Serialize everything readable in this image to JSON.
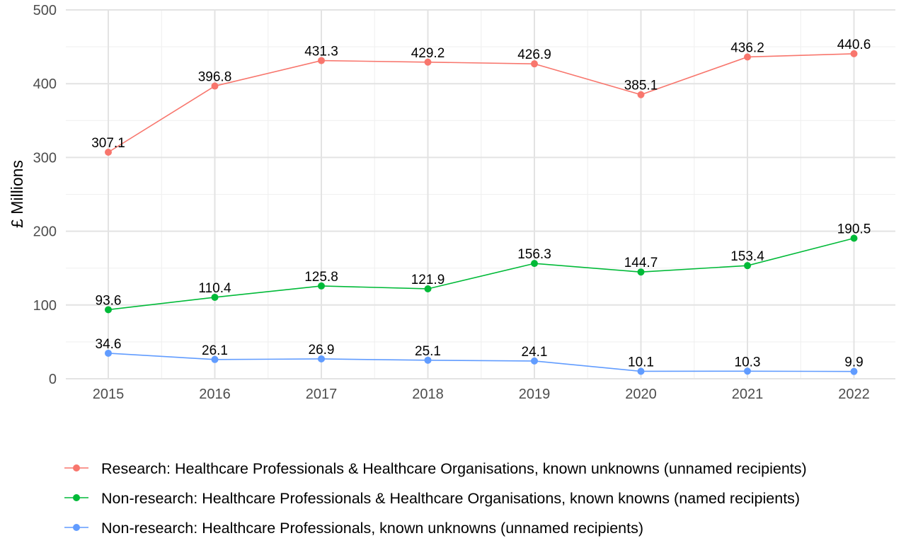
{
  "chart_data": {
    "type": "line",
    "title": "",
    "xlabel": "",
    "ylabel": "£ Millions",
    "x": [
      2015,
      2016,
      2017,
      2018,
      2019,
      2020,
      2021,
      2022
    ],
    "x_tick_labels": [
      "2015",
      "2016",
      "2017",
      "2018",
      "2019",
      "2020",
      "2021",
      "2022"
    ],
    "ylim": [
      0,
      500
    ],
    "y_ticks": [
      0,
      100,
      200,
      300,
      400,
      500
    ],
    "y_tick_labels": [
      "0",
      "100",
      "200",
      "300",
      "400",
      "500"
    ],
    "grid": true,
    "legend_position": "bottom",
    "series": [
      {
        "name": "Research: Healthcare Professionals & Healthcare Organisations, known unknowns (unnamed recipients)",
        "color": "#F8766D",
        "values": [
          307.1,
          396.8,
          431.3,
          429.2,
          426.9,
          385.1,
          436.2,
          440.6
        ],
        "labels": [
          "307.1",
          "396.8",
          "431.3",
          "429.2",
          "426.9",
          "385.1",
          "436.2",
          "440.6"
        ]
      },
      {
        "name": "Non-research: Healthcare Professionals & Healthcare Organisations, known knowns (named recipients)",
        "color": "#00BA38",
        "values": [
          93.6,
          110.4,
          125.8,
          121.9,
          156.3,
          144.7,
          153.4,
          190.5
        ],
        "labels": [
          "93.6",
          "110.4",
          "125.8",
          "121.9",
          "156.3",
          "144.7",
          "153.4",
          "190.5"
        ]
      },
      {
        "name": "Non-research: Healthcare Professionals, known unknowns (unnamed recipients)",
        "color": "#619CFF",
        "values": [
          34.6,
          26.1,
          26.9,
          25.1,
          24.1,
          10.1,
          10.3,
          9.9
        ],
        "labels": [
          "34.6",
          "26.1",
          "26.9",
          "25.1",
          "24.1",
          "10.1",
          "10.3",
          "9.9"
        ]
      }
    ]
  }
}
